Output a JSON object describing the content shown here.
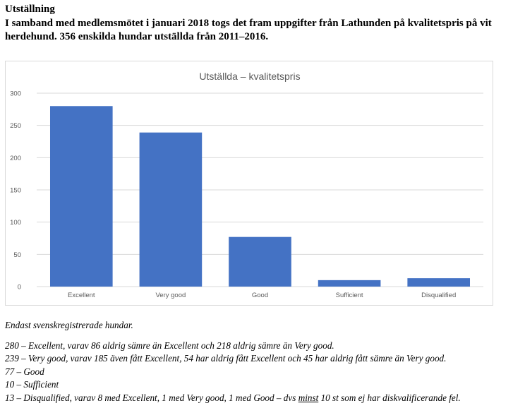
{
  "document": {
    "heading": "Utställning",
    "intro": "I samband med medlemsmötet i januari 2018 togs det fram uppgifter från Lathunden på kvalitetspris på vit herdehund. 356 enskilda hundar utställda från 2011–2016.",
    "notes": {
      "lead": "Endast svenskregistrerade hundar.",
      "line1": "280 – Excellent, varav 86 aldrig sämre än Excellent och 218 aldrig sämre än Very good.",
      "line2": "239 – Very good, varav 185 även fått Excellent, 54 har aldrig fått Excellent och 45 har aldrig fått sämre än Very good.",
      "line3": "77 – Good",
      "line4": "10 – Sufficient",
      "line5_a": "13 – Disqualified, varav 8 med Excellent, 1 med Very good, 1 med Good – dvs ",
      "line5_b": "minst",
      "line5_c": " 10 st som ej har diskvalificerande fel."
    }
  },
  "colors": {
    "bar": "#4472c4",
    "grid": "#d9d9d9",
    "axis_text": "#595959",
    "title_text": "#595959"
  },
  "chart_data": {
    "type": "bar",
    "title": "Utställda – kvalitetspris",
    "categories": [
      "Excellent",
      "Very good",
      "Good",
      "Sufficient",
      "Disqualified"
    ],
    "values": [
      280,
      239,
      77,
      10,
      13
    ],
    "ylim": [
      0,
      300
    ],
    "yticks": [
      0,
      50,
      100,
      150,
      200,
      250,
      300
    ],
    "xlabel": "",
    "ylabel": "",
    "grid": true,
    "legend": "none"
  }
}
